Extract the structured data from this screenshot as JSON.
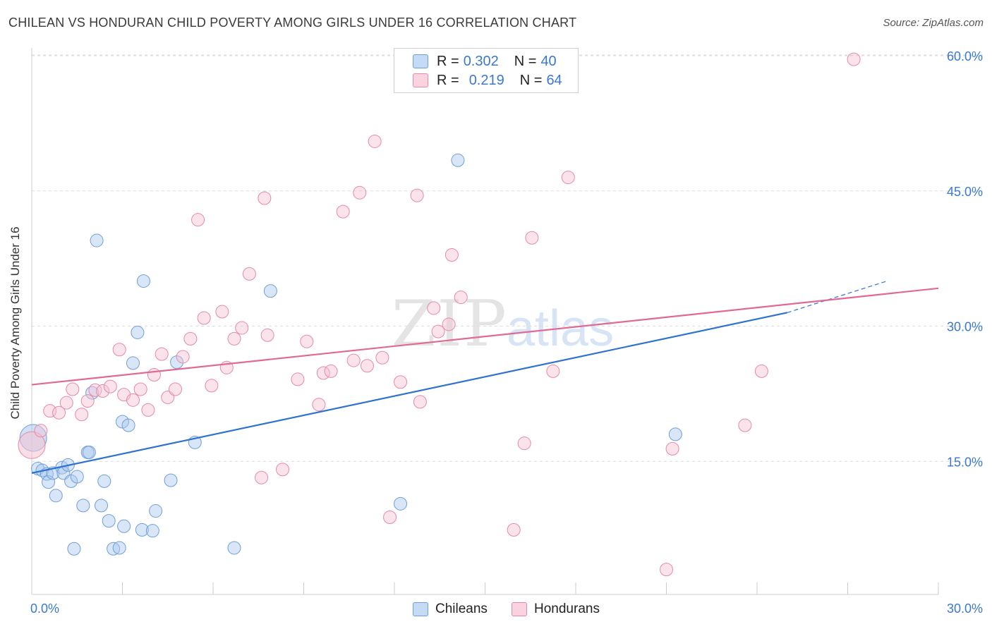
{
  "header": {
    "title": "CHILEAN VS HONDURAN CHILD POVERTY AMONG GIRLS UNDER 16 CORRELATION CHART",
    "source": "Source: ZipAtlas.com"
  },
  "watermark": {
    "zip": "ZIP",
    "atlas": "atlas"
  },
  "legend": {
    "rows": [
      {
        "r_label": "R =",
        "r_value": "0.302",
        "n_label": "N =",
        "n_value": "40",
        "color": "#a9c8f0",
        "border": "#6f9fd8"
      },
      {
        "r_label": "R =",
        "r_value": "0.219",
        "n_label": "N =",
        "n_value": "64",
        "color": "#f6c2d2",
        "border": "#e48aa8"
      }
    ]
  },
  "bottom_legend": {
    "chileans": "Chileans",
    "hondurans": "Hondurans"
  },
  "colors": {
    "blue_fill": "#a9c8f0",
    "blue_stroke": "#6f9fd8",
    "blue_line": "#2f72d0",
    "pink_fill": "#f6c2d2",
    "pink_stroke": "#e48aa8",
    "pink_line": "#e06a94",
    "grid": "#dcdcdc",
    "axis_label": "#3a78d4"
  },
  "chart_data": {
    "type": "scatter",
    "title": "CHILEAN VS HONDURAN CHILD POVERTY AMONG GIRLS UNDER 16 CORRELATION CHART",
    "ylabel": "Child Poverty Among Girls Under 16",
    "xlabel": "",
    "xlim": [
      0,
      30
    ],
    "ylim": [
      0,
      60
    ],
    "x_tick_labels": [
      "0.0%",
      "30.0%"
    ],
    "y_tick_labels": [
      "15.0%",
      "30.0%",
      "45.0%",
      "60.0%"
    ],
    "y_ticks": [
      15,
      30,
      45,
      60
    ],
    "grid": true,
    "legend_position": "top-center",
    "series": [
      {
        "name": "Chileans",
        "points": [
          [
            0.05,
            17.6
          ],
          [
            0.2,
            14.2
          ],
          [
            0.35,
            14.0
          ],
          [
            0.5,
            13.6
          ],
          [
            0.55,
            12.7
          ],
          [
            0.7,
            13.7
          ],
          [
            0.8,
            11.2
          ],
          [
            1.0,
            14.3
          ],
          [
            1.05,
            13.7
          ],
          [
            1.2,
            14.6
          ],
          [
            1.3,
            12.8
          ],
          [
            1.5,
            13.3
          ],
          [
            1.4,
            5.3
          ],
          [
            1.7,
            10.1
          ],
          [
            1.85,
            16.0
          ],
          [
            1.9,
            16.0
          ],
          [
            2.0,
            22.6
          ],
          [
            2.15,
            39.5
          ],
          [
            2.3,
            10.1
          ],
          [
            2.4,
            12.8
          ],
          [
            2.55,
            8.4
          ],
          [
            2.7,
            5.3
          ],
          [
            2.9,
            5.4
          ],
          [
            3.0,
            19.4
          ],
          [
            3.05,
            7.8
          ],
          [
            3.2,
            19.0
          ],
          [
            3.35,
            25.9
          ],
          [
            3.5,
            29.3
          ],
          [
            3.65,
            7.4
          ],
          [
            3.7,
            35.0
          ],
          [
            4.0,
            7.3
          ],
          [
            4.1,
            9.5
          ],
          [
            4.6,
            12.9
          ],
          [
            4.8,
            26.0
          ],
          [
            5.4,
            17.1
          ],
          [
            6.7,
            5.4
          ],
          [
            7.9,
            33.9
          ],
          [
            12.2,
            10.3
          ],
          [
            14.1,
            48.4
          ],
          [
            21.3,
            18.0
          ]
        ],
        "trend": {
          "x0": 0,
          "y0": 13.7,
          "x1": 25.0,
          "y1": 31.5,
          "dashed_to_x": 28.3,
          "dashed_to_y": 35.0
        }
      },
      {
        "name": "Hondurans",
        "points": [
          [
            0.0,
            16.8
          ],
          [
            0.3,
            18.4
          ],
          [
            0.6,
            20.6
          ],
          [
            0.9,
            20.4
          ],
          [
            1.15,
            21.5
          ],
          [
            1.35,
            23.0
          ],
          [
            1.65,
            20.2
          ],
          [
            1.85,
            21.7
          ],
          [
            2.1,
            22.9
          ],
          [
            2.35,
            22.8
          ],
          [
            2.6,
            23.3
          ],
          [
            2.9,
            27.4
          ],
          [
            3.05,
            22.4
          ],
          [
            3.35,
            21.8
          ],
          [
            3.6,
            23.0
          ],
          [
            3.85,
            20.7
          ],
          [
            4.05,
            24.6
          ],
          [
            4.3,
            26.9
          ],
          [
            4.5,
            22.1
          ],
          [
            4.75,
            23.0
          ],
          [
            5.0,
            26.6
          ],
          [
            5.25,
            28.6
          ],
          [
            5.5,
            41.8
          ],
          [
            5.7,
            30.9
          ],
          [
            5.95,
            23.4
          ],
          [
            6.3,
            31.6
          ],
          [
            6.45,
            25.4
          ],
          [
            6.7,
            28.6
          ],
          [
            6.95,
            29.8
          ],
          [
            7.2,
            35.8
          ],
          [
            7.6,
            13.2
          ],
          [
            7.7,
            44.2
          ],
          [
            7.8,
            29.0
          ],
          [
            8.3,
            14.1
          ],
          [
            8.8,
            24.1
          ],
          [
            9.1,
            28.3
          ],
          [
            9.5,
            21.3
          ],
          [
            9.65,
            24.8
          ],
          [
            9.9,
            25.0
          ],
          [
            10.3,
            42.7
          ],
          [
            10.65,
            26.2
          ],
          [
            10.85,
            44.8
          ],
          [
            11.1,
            25.6
          ],
          [
            11.35,
            50.5
          ],
          [
            11.6,
            26.5
          ],
          [
            11.85,
            8.8
          ],
          [
            12.2,
            23.8
          ],
          [
            12.75,
            44.5
          ],
          [
            12.85,
            21.6
          ],
          [
            13.3,
            32.0
          ],
          [
            13.45,
            29.4
          ],
          [
            13.8,
            30.2
          ],
          [
            13.9,
            37.9
          ],
          [
            14.2,
            33.2
          ],
          [
            15.95,
            7.4
          ],
          [
            16.3,
            17.0
          ],
          [
            16.55,
            39.8
          ],
          [
            17.25,
            25.0
          ],
          [
            17.75,
            46.5
          ],
          [
            21.0,
            3.0
          ],
          [
            21.2,
            16.4
          ],
          [
            23.6,
            19.0
          ],
          [
            24.15,
            25.0
          ],
          [
            27.2,
            59.6
          ]
        ],
        "trend": {
          "x0": 0,
          "y0": 23.5,
          "x1": 30.0,
          "y1": 34.2
        }
      }
    ]
  }
}
